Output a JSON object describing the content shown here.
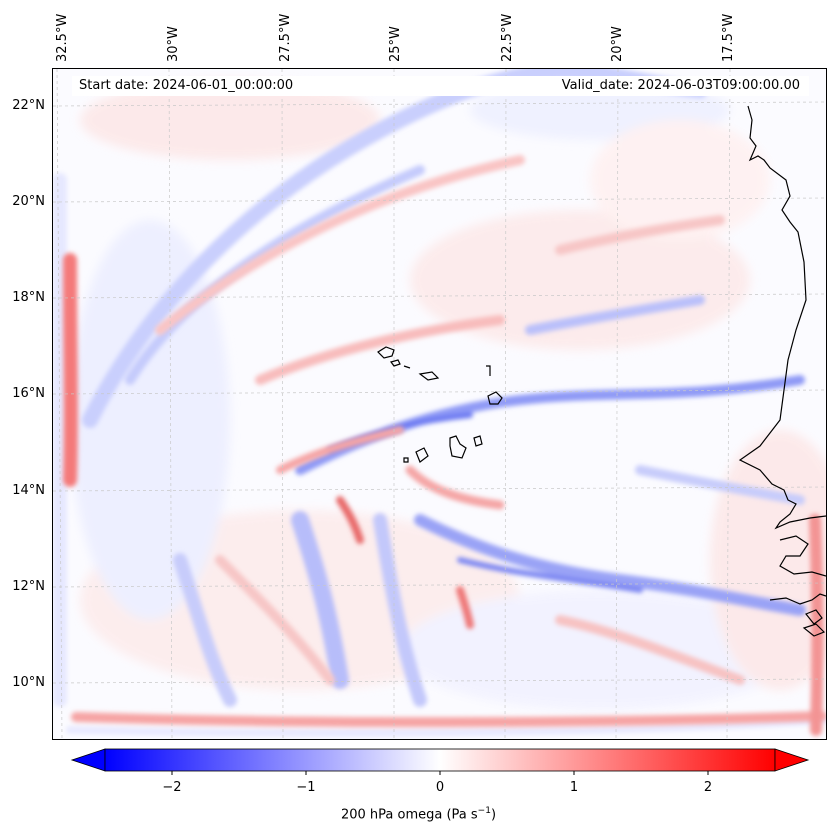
{
  "header": {
    "start_date": "Start date: 2024-06-01_00:00:00",
    "valid_date": "Valid_date: 2024-06-03T09:00:00.00"
  },
  "map": {
    "field": "200 hPa omega",
    "longitude_labels": [
      "32.5°W",
      "30°W",
      "27.5°W",
      "25°W",
      "22.5°W",
      "20°W",
      "17.5°W"
    ],
    "latitude_labels": [
      "22°N",
      "20°N",
      "18°N",
      "16°N",
      "14°N",
      "12°N",
      "10°N"
    ],
    "extent": {
      "lon_min": -32.7,
      "lon_max": -15.6,
      "lat_min": 8.9,
      "lat_max": 22.8
    },
    "gridlines": true,
    "coastlines": "Cabo Verde islands and West African coast (Senegal / Guinea-Bissau)"
  },
  "colorbar": {
    "label_prefix": "200 hPa omega (Pa s",
    "label_exp": "−1",
    "label_suffix": ")",
    "ticks": [
      "−2",
      "−1",
      "0",
      "1",
      "2"
    ],
    "tick_values": [
      -2,
      -1,
      0,
      1,
      2
    ],
    "range": [
      -2.6,
      2.6
    ],
    "colormap": "bwr",
    "color_min": "#0000ff",
    "color_mid": "#ffffff",
    "color_max": "#ff0000",
    "extend": "both"
  }
}
